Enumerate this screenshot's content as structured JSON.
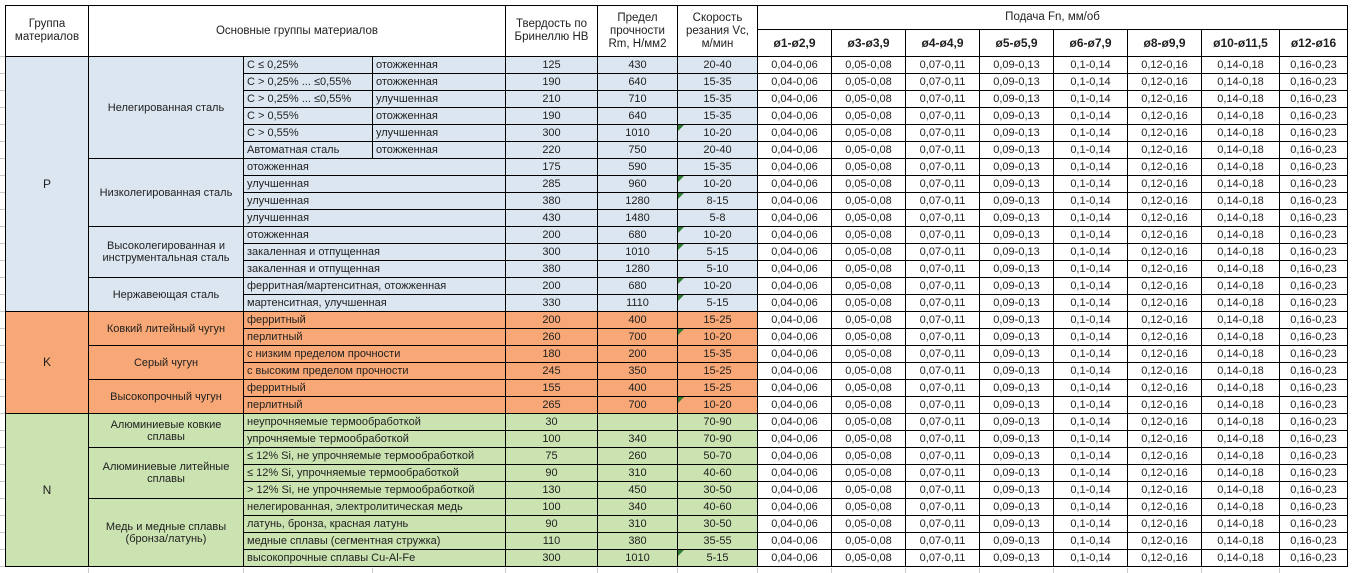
{
  "header": {
    "col_group": "Группа материалов",
    "col_materials": "Основные группы материалов",
    "col_hb": "Твердость по Бринеллю HB",
    "col_rm": "Предел прочности Rm, Н/мм2",
    "col_vc": "Скорость резания Vc, м/мин",
    "feed_title": "Подача Fn, мм/об",
    "feed_columns": [
      "ø1-ø2,9",
      "ø3-ø3,9",
      "ø4-ø4,9",
      "ø5-ø5,9",
      "ø6-ø7,9",
      "ø8-ø9,9",
      "ø10-ø11,5",
      "ø12-ø16"
    ]
  },
  "feed_values": [
    "0,04-0,06",
    "0,05-0,08",
    "0,07-0,11",
    "0,09-0,13",
    "0,1-0,14",
    "0,12-0,16",
    "0,14-0,18",
    "0,16-0,23"
  ],
  "colors": {
    "p": "#dce6f1",
    "k": "#f7a876",
    "n": "#cbe2b1",
    "flag_green": "#2e7d32",
    "border": "#000000",
    "gridline": "#c9c9c9"
  },
  "groups": [
    {
      "letter": "P",
      "color_key": "p",
      "subgroups": [
        {
          "name": "Нелегированная сталь",
          "split": true,
          "rows": [
            {
              "c1": "C ≤ 0,25%",
              "c2": "отожженная",
              "hb": "125",
              "rm": "430",
              "vc": "20-40",
              "flag": false
            },
            {
              "c1": "C > 0,25% ... ≤0,55%",
              "c2": "отожженная",
              "hb": "190",
              "rm": "640",
              "vc": "15-35",
              "flag": false
            },
            {
              "c1": "C > 0,25% ... ≤0,55%",
              "c2": "улучшенная",
              "hb": "210",
              "rm": "710",
              "vc": "15-35",
              "flag": false
            },
            {
              "c1": "C > 0,55%",
              "c2": "отожженная",
              "hb": "190",
              "rm": "640",
              "vc": "15-35",
              "flag": false
            },
            {
              "c1": "C > 0,55%",
              "c2": "улучшенная",
              "hb": "300",
              "rm": "1010",
              "vc": "10-20",
              "flag": true
            },
            {
              "c1": "Автоматная сталь",
              "c2": "отожженная",
              "hb": "220",
              "rm": "750",
              "vc": "20-40",
              "flag": false
            }
          ]
        },
        {
          "name": "Низколегированная сталь",
          "split": false,
          "rows": [
            {
              "c1": "отожженная",
              "hb": "175",
              "rm": "590",
              "vc": "15-35",
              "flag": false
            },
            {
              "c1": "улучшенная",
              "hb": "285",
              "rm": "960",
              "vc": "10-20",
              "flag": true
            },
            {
              "c1": "улучшенная",
              "hb": "380",
              "rm": "1280",
              "vc": "8-15",
              "flag": true
            },
            {
              "c1": "улучшенная",
              "hb": "430",
              "rm": "1480",
              "vc": "5-8",
              "flag": false
            }
          ]
        },
        {
          "name": "Высоколегированная и инструментальная сталь",
          "split": false,
          "rows": [
            {
              "c1": "отожженная",
              "hb": "200",
              "rm": "680",
              "vc": "10-20",
              "flag": true
            },
            {
              "c1": "закаленная и отпущенная",
              "hb": "300",
              "rm": "1010",
              "vc": "5-15",
              "flag": true
            },
            {
              "c1": "закаленная и отпущенная",
              "hb": "380",
              "rm": "1280",
              "vc": "5-10",
              "flag": false
            }
          ]
        },
        {
          "name": "Нержавеющая сталь",
          "split": false,
          "rows": [
            {
              "c1": "ферритная/мартенситная, отожженная",
              "hb": "200",
              "rm": "680",
              "vc": "10-20",
              "flag": true
            },
            {
              "c1": "мартенситная, улучшенная",
              "hb": "330",
              "rm": "1110",
              "vc": "5-15",
              "flag": true
            }
          ]
        }
      ]
    },
    {
      "letter": "K",
      "color_key": "k",
      "subgroups": [
        {
          "name": "Ковкий литейный чугун",
          "split": false,
          "rows": [
            {
              "c1": "ферритный",
              "hb": "200",
              "rm": "400",
              "vc": "15-25",
              "flag": false
            },
            {
              "c1": "перлитный",
              "hb": "260",
              "rm": "700",
              "vc": "10-20",
              "flag": true
            }
          ]
        },
        {
          "name": "Серый чугун",
          "split": false,
          "rows": [
            {
              "c1": "с низким пределом прочности",
              "hb": "180",
              "rm": "200",
              "vc": "15-35",
              "flag": false
            },
            {
              "c1": "с высоким пределом прочности",
              "hb": "245",
              "rm": "350",
              "vc": "15-25",
              "flag": false
            }
          ]
        },
        {
          "name": "Высокопрочный чугун",
          "split": false,
          "rows": [
            {
              "c1": "ферритный",
              "hb": "155",
              "rm": "400",
              "vc": "15-25",
              "flag": false
            },
            {
              "c1": "перлитный",
              "hb": "265",
              "rm": "700",
              "vc": "10-20",
              "flag": true
            }
          ]
        }
      ]
    },
    {
      "letter": "N",
      "color_key": "n",
      "subgroups": [
        {
          "name": "Алюминиевые ковкие сплавы",
          "split": false,
          "rows": [
            {
              "c1": "неупрочняемые термообработкой",
              "hb": "30",
              "rm": "",
              "vc": "70-90",
              "flag": false
            },
            {
              "c1": "упрочняемые термообработкой",
              "hb": "100",
              "rm": "340",
              "vc": "70-90",
              "flag": false
            }
          ]
        },
        {
          "name": "Алюминиевые литейные сплавы",
          "split": false,
          "rows": [
            {
              "c1": "≤ 12% Si, не упрочняемые термообработкой",
              "hb": "75",
              "rm": "260",
              "vc": "50-70",
              "flag": false
            },
            {
              "c1": "≤ 12% Si, упрочняемые термообработкой",
              "hb": "90",
              "rm": "310",
              "vc": "40-60",
              "flag": false
            },
            {
              "c1": "> 12% Si, не упрочняемые термообработкой",
              "hb": "130",
              "rm": "450",
              "vc": "30-50",
              "flag": false
            }
          ]
        },
        {
          "name": "Медь и медные сплавы (бронза/латунь)",
          "split": false,
          "rows": [
            {
              "c1": "нелегированная, электролитическая медь",
              "hb": "100",
              "rm": "340",
              "vc": "40-60",
              "flag": false
            },
            {
              "c1": "латунь, бронза, красная латунь",
              "hb": "90",
              "rm": "310",
              "vc": "30-50",
              "flag": false
            },
            {
              "c1": "медные сплавы (сегментная стружка)",
              "hb": "110",
              "rm": "380",
              "vc": "35-55",
              "flag": false
            },
            {
              "c1": "высокопрочные сплавы Cu-Al-Fe",
              "hb": "300",
              "rm": "1010",
              "vc": "5-15",
              "flag": true
            }
          ]
        }
      ]
    }
  ]
}
